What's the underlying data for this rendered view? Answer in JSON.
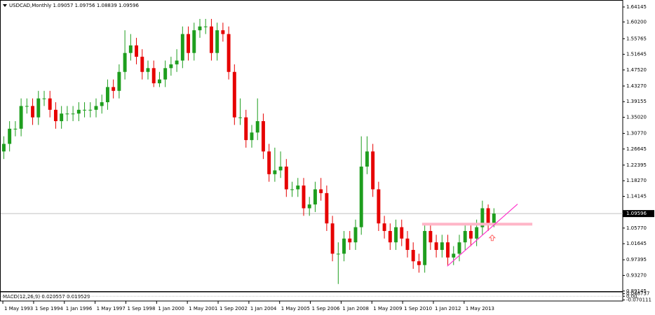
{
  "chart_data": {
    "type": "candlestick",
    "title": "USDCAD,Monthly  1.09057 1.09756 1.08839 1.09596",
    "x": [
      1993.375,
      1993.625,
      1993.875,
      1994.125,
      1994.375,
      1994.625,
      1994.875,
      1995.125,
      1995.375,
      1995.625,
      1995.875,
      1996.125,
      1996.375,
      1996.625,
      1996.875,
      1997.125,
      1997.375,
      1997.625,
      1997.875,
      1998.125,
      1998.375,
      1998.625,
      1998.875,
      1999.125,
      1999.375,
      1999.625,
      1999.875,
      2000.125,
      2000.375,
      2000.625,
      2000.875,
      2001.125,
      2001.375,
      2001.625,
      2001.875,
      2002.125,
      2002.375,
      2002.625,
      2002.875,
      2003.125,
      2003.375,
      2003.625,
      2003.875,
      2004.125,
      2004.375,
      2004.625,
      2004.875,
      2005.125,
      2005.375,
      2005.625,
      2005.875,
      2006.125,
      2006.375,
      2006.625,
      2006.875,
      2007.125,
      2007.375,
      2007.625,
      2007.875,
      2008.125,
      2008.375,
      2008.625,
      2008.875,
      2009.125,
      2009.375,
      2009.625,
      2009.875,
      2010.125,
      2010.375,
      2010.625,
      2010.875,
      2011.125,
      2011.375,
      2011.625,
      2011.875,
      2012.125,
      2012.375,
      2012.625,
      2012.875,
      2013.125,
      2013.375,
      2013.625,
      2013.875,
      2014.125,
      2014.375,
      2014.625
    ],
    "open": [
      1.26,
      1.28,
      1.32,
      1.32,
      1.38,
      1.38,
      1.35,
      1.4,
      1.4,
      1.37,
      1.34,
      1.36,
      1.36,
      1.36,
      1.37,
      1.37,
      1.37,
      1.38,
      1.39,
      1.43,
      1.42,
      1.47,
      1.52,
      1.54,
      1.51,
      1.47,
      1.48,
      1.44,
      1.45,
      1.48,
      1.49,
      1.5,
      1.57,
      1.52,
      1.58,
      1.59,
      1.59,
      1.52,
      1.58,
      1.57,
      1.47,
      1.35,
      1.35,
      1.29,
      1.31,
      1.34,
      1.26,
      1.2,
      1.21,
      1.22,
      1.16,
      1.16,
      1.17,
      1.11,
      1.12,
      1.16,
      1.15,
      1.07,
      0.99,
      0.99,
      1.03,
      1.02,
      1.06,
      1.22,
      1.26,
      1.16,
      1.07,
      1.05,
      1.02,
      1.06,
      1.03,
      1.0,
      0.97,
      0.96,
      1.05,
      1.02,
      1.0,
      1.02,
      0.98,
      0.99,
      1.02,
      1.05,
      1.03,
      1.06,
      1.11,
      1.07
    ],
    "high": [
      1.3,
      1.34,
      1.34,
      1.4,
      1.4,
      1.4,
      1.42,
      1.42,
      1.42,
      1.39,
      1.38,
      1.38,
      1.38,
      1.39,
      1.39,
      1.39,
      1.4,
      1.41,
      1.45,
      1.45,
      1.49,
      1.58,
      1.57,
      1.56,
      1.53,
      1.5,
      1.5,
      1.47,
      1.5,
      1.51,
      1.53,
      1.59,
      1.59,
      1.6,
      1.61,
      1.61,
      1.61,
      1.6,
      1.6,
      1.59,
      1.49,
      1.4,
      1.37,
      1.33,
      1.4,
      1.36,
      1.28,
      1.27,
      1.26,
      1.24,
      1.18,
      1.19,
      1.19,
      1.14,
      1.18,
      1.19,
      1.17,
      1.09,
      1.02,
      1.05,
      1.05,
      1.08,
      1.3,
      1.3,
      1.28,
      1.18,
      1.09,
      1.07,
      1.08,
      1.08,
      1.05,
      1.02,
      0.99,
      1.07,
      1.07,
      1.04,
      1.04,
      1.04,
      1.01,
      1.04,
      1.07,
      1.07,
      1.08,
      1.13,
      1.12,
      1.11
    ],
    "low": [
      1.24,
      1.26,
      1.3,
      1.3,
      1.36,
      1.33,
      1.33,
      1.38,
      1.35,
      1.32,
      1.32,
      1.34,
      1.34,
      1.34,
      1.35,
      1.35,
      1.35,
      1.36,
      1.37,
      1.4,
      1.4,
      1.45,
      1.5,
      1.49,
      1.45,
      1.45,
      1.43,
      1.43,
      1.43,
      1.46,
      1.47,
      1.48,
      1.5,
      1.5,
      1.56,
      1.57,
      1.5,
      1.5,
      1.55,
      1.45,
      1.33,
      1.33,
      1.27,
      1.27,
      1.29,
      1.24,
      1.18,
      1.18,
      1.19,
      1.14,
      1.14,
      1.14,
      1.09,
      1.09,
      1.1,
      1.13,
      1.05,
      0.97,
      0.91,
      0.97,
      1.0,
      1.0,
      1.04,
      1.2,
      1.14,
      1.05,
      1.03,
      1.0,
      1.0,
      1.01,
      0.98,
      0.95,
      0.94,
      0.94,
      1.0,
      0.98,
      0.98,
      0.96,
      0.96,
      0.97,
      1.0,
      1.01,
      1.01,
      1.04,
      1.05,
      1.06
    ],
    "close": [
      1.28,
      1.32,
      1.32,
      1.38,
      1.38,
      1.35,
      1.4,
      1.4,
      1.37,
      1.34,
      1.36,
      1.36,
      1.36,
      1.37,
      1.37,
      1.37,
      1.38,
      1.39,
      1.43,
      1.42,
      1.47,
      1.52,
      1.54,
      1.51,
      1.47,
      1.48,
      1.44,
      1.45,
      1.48,
      1.49,
      1.5,
      1.57,
      1.52,
      1.58,
      1.59,
      1.59,
      1.52,
      1.58,
      1.57,
      1.47,
      1.35,
      1.35,
      1.29,
      1.31,
      1.34,
      1.26,
      1.2,
      1.21,
      1.22,
      1.16,
      1.16,
      1.17,
      1.11,
      1.12,
      1.16,
      1.15,
      1.07,
      0.99,
      0.99,
      1.03,
      1.02,
      1.06,
      1.22,
      1.26,
      1.16,
      1.07,
      1.05,
      1.02,
      1.06,
      1.03,
      1.0,
      0.97,
      0.96,
      1.05,
      1.02,
      1.0,
      1.02,
      0.98,
      0.99,
      1.02,
      1.05,
      1.03,
      1.06,
      1.11,
      1.07,
      1.096
    ],
    "up_color": "#1e9e1e",
    "down_color": "#e60000",
    "xlim": [
      1993.24,
      2020.21
    ],
    "xticks": [
      {
        "value": 1993.333,
        "label": "1 May 1993"
      },
      {
        "value": 1994.667,
        "label": "1 Sep 1994"
      },
      {
        "value": 1996.0,
        "label": "1 Jan 1996"
      },
      {
        "value": 1997.333,
        "label": "1 May 1997"
      },
      {
        "value": 1998.667,
        "label": "1 Sep 1998"
      },
      {
        "value": 2000.0,
        "label": "1 Jan 2000"
      },
      {
        "value": 2001.333,
        "label": "1 May 2001"
      },
      {
        "value": 2002.667,
        "label": "1 Sep 2002"
      },
      {
        "value": 2004.0,
        "label": "1 Jan 2004"
      },
      {
        "value": 2005.333,
        "label": "1 May 2005"
      },
      {
        "value": 2006.667,
        "label": "1 Sep 2006"
      },
      {
        "value": 2008.0,
        "label": "1 Jan 2008"
      },
      {
        "value": 2009.333,
        "label": "1 May 2009"
      },
      {
        "value": 2010.667,
        "label": "1 Sep 2010"
      },
      {
        "value": 2012.0,
        "label": "1 Jan 2012"
      },
      {
        "value": 2013.333,
        "label": "1 May 2013"
      }
    ],
    "ylim": [
      0.891,
      1.6525
    ],
    "yticks": [
      {
        "value": 1.64145,
        "label": "1.64145"
      },
      {
        "value": 1.602,
        "label": "1.60200"
      },
      {
        "value": 1.55765,
        "label": "1.55765"
      },
      {
        "value": 1.51645,
        "label": "1.51645"
      },
      {
        "value": 1.4752,
        "label": "1.47520"
      },
      {
        "value": 1.4327,
        "label": "1.43270"
      },
      {
        "value": 1.39155,
        "label": "1.39155"
      },
      {
        "value": 1.3502,
        "label": "1.35020"
      },
      {
        "value": 1.3077,
        "label": "1.30770"
      },
      {
        "value": 1.26645,
        "label": "1.26645"
      },
      {
        "value": 1.22395,
        "label": "1.22395"
      },
      {
        "value": 1.1827,
        "label": "1.18270"
      },
      {
        "value": 1.14145,
        "label": "1.14145"
      },
      {
        "value": 1.0577,
        "label": "1.05770"
      },
      {
        "value": 1.01645,
        "label": "1.01645"
      },
      {
        "value": 0.97395,
        "label": "0.97395"
      },
      {
        "value": 0.9327,
        "label": "0.93270"
      },
      {
        "value": 0.89145,
        "label": "0.89145"
      }
    ],
    "price_line": {
      "value": 1.09596,
      "color": "#c0c0c0"
    },
    "trendline": {
      "x": [
        2012.6,
        2015.65
      ],
      "y": [
        0.957,
        1.121
      ],
      "color": "#ff33cc"
    },
    "support_band": {
      "x": [
        2011.51,
        2016.29
      ],
      "y": 1.068,
      "color": "#ffb6c8"
    },
    "arrow": {
      "x": 2014.55,
      "y": 1.032,
      "color": "#ff6b6b"
    },
    "macd_title": "MACD(12,26,9) 0.020557 0.019529",
    "y2lim": [
      -0.09,
      0.07
    ],
    "y2ticks": [
      {
        "value": 0.048737,
        "label": "0.048737"
      },
      {
        "value": 0,
        "label": "0.00"
      },
      {
        "value": -0.070111,
        "label": "-0.070111"
      }
    ]
  }
}
